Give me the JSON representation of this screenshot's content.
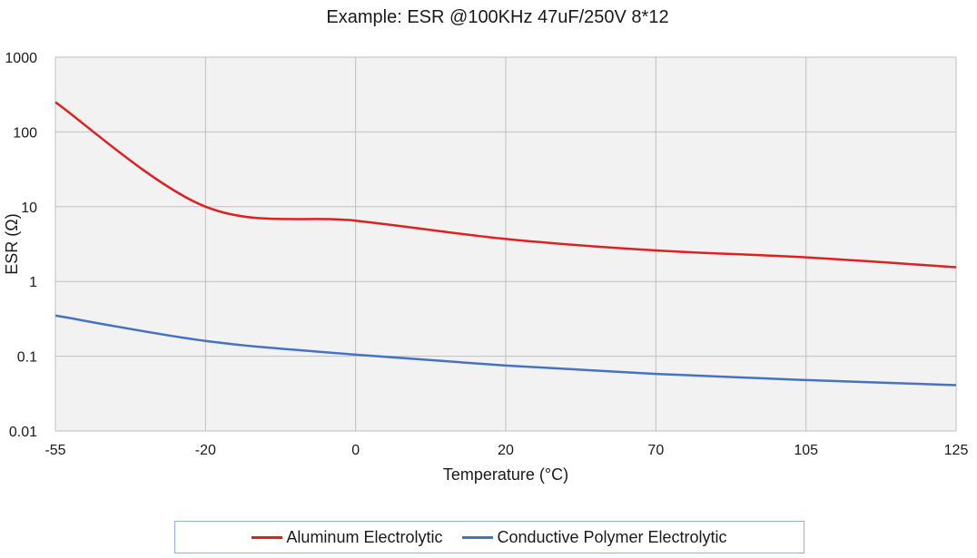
{
  "chart_data": {
    "type": "line",
    "title": "Example: ESR @100KHz 47uF/250V 8*12",
    "xlabel": "Temperature (°C)",
    "ylabel": "ESR (Ω)",
    "y_scale": "log",
    "ylim": [
      0.01,
      1000
    ],
    "y_ticks": [
      "1000",
      "100",
      "10",
      "1",
      "0.1",
      "0.01"
    ],
    "categories": [
      "-55",
      "-20",
      "0",
      "20",
      "70",
      "105",
      "125"
    ],
    "grid": true,
    "legend_position": "bottom",
    "series": [
      {
        "name": "Aluminum Electrolytic",
        "color": "#e02020",
        "values": [
          250,
          10,
          6.5,
          3.7,
          2.6,
          2.1,
          1.55
        ]
      },
      {
        "name": "Conductive Polymer Electrolytic",
        "color": "#4472c4",
        "values": [
          0.35,
          0.16,
          0.105,
          0.075,
          0.058,
          0.048,
          0.041
        ]
      }
    ],
    "plot_background": "#f2f2f2",
    "grid_color": "#bfbfbf"
  }
}
